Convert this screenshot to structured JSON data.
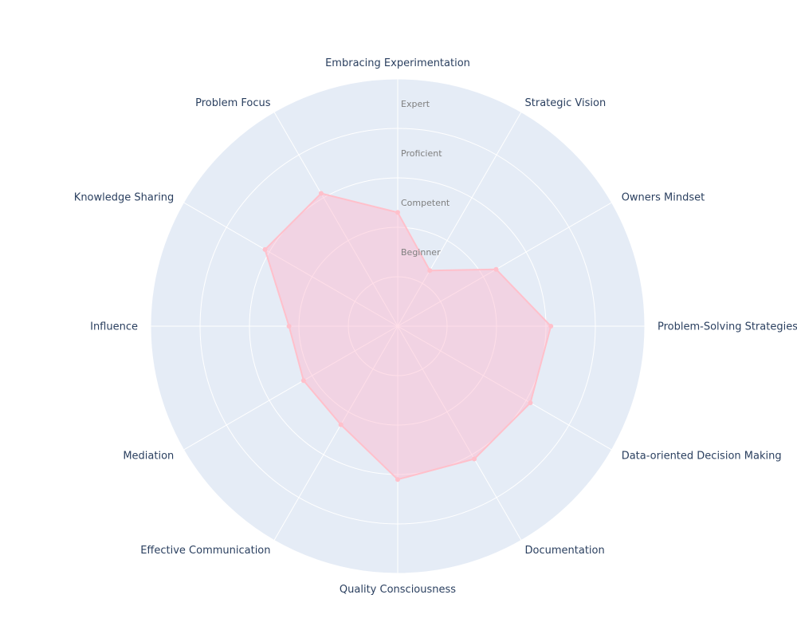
{
  "chart_data": {
    "type": "radar",
    "title": "",
    "categories": [
      "Embracing Experimentation",
      "Strategic Vision",
      "Owners Mindset",
      "Problem-Solving Strategies",
      "Data-oriented Decision Making",
      "Documentation",
      "Quality Consciousness",
      "Effective Communication",
      "Mediation",
      "Influence",
      "Knowledge Sharing",
      "Problem Focus"
    ],
    "radial_range": [
      0,
      5
    ],
    "radial_ticks": [
      {
        "value": 1.5,
        "label": "Beginner"
      },
      {
        "value": 2.5,
        "label": "Competent"
      },
      {
        "value": 3.5,
        "label": "Proficient"
      },
      {
        "value": 4.5,
        "label": "Expert"
      }
    ],
    "series": [
      {
        "name": "",
        "values": [
          2.3,
          1.3,
          2.3,
          3.1,
          3.1,
          3.1,
          3.1,
          2.3,
          2.2,
          2.2,
          3.1,
          3.1
        ]
      }
    ],
    "colors": {
      "polar_background": "#e5ecf6",
      "grid": "#ffffff",
      "series_line": "#ffc0cb",
      "series_fill": "rgba(255,182,203,0.45)",
      "axis_label": "#2a3f5f",
      "tick_label": "#7f7f7f"
    },
    "grid": true,
    "legend": "none"
  }
}
